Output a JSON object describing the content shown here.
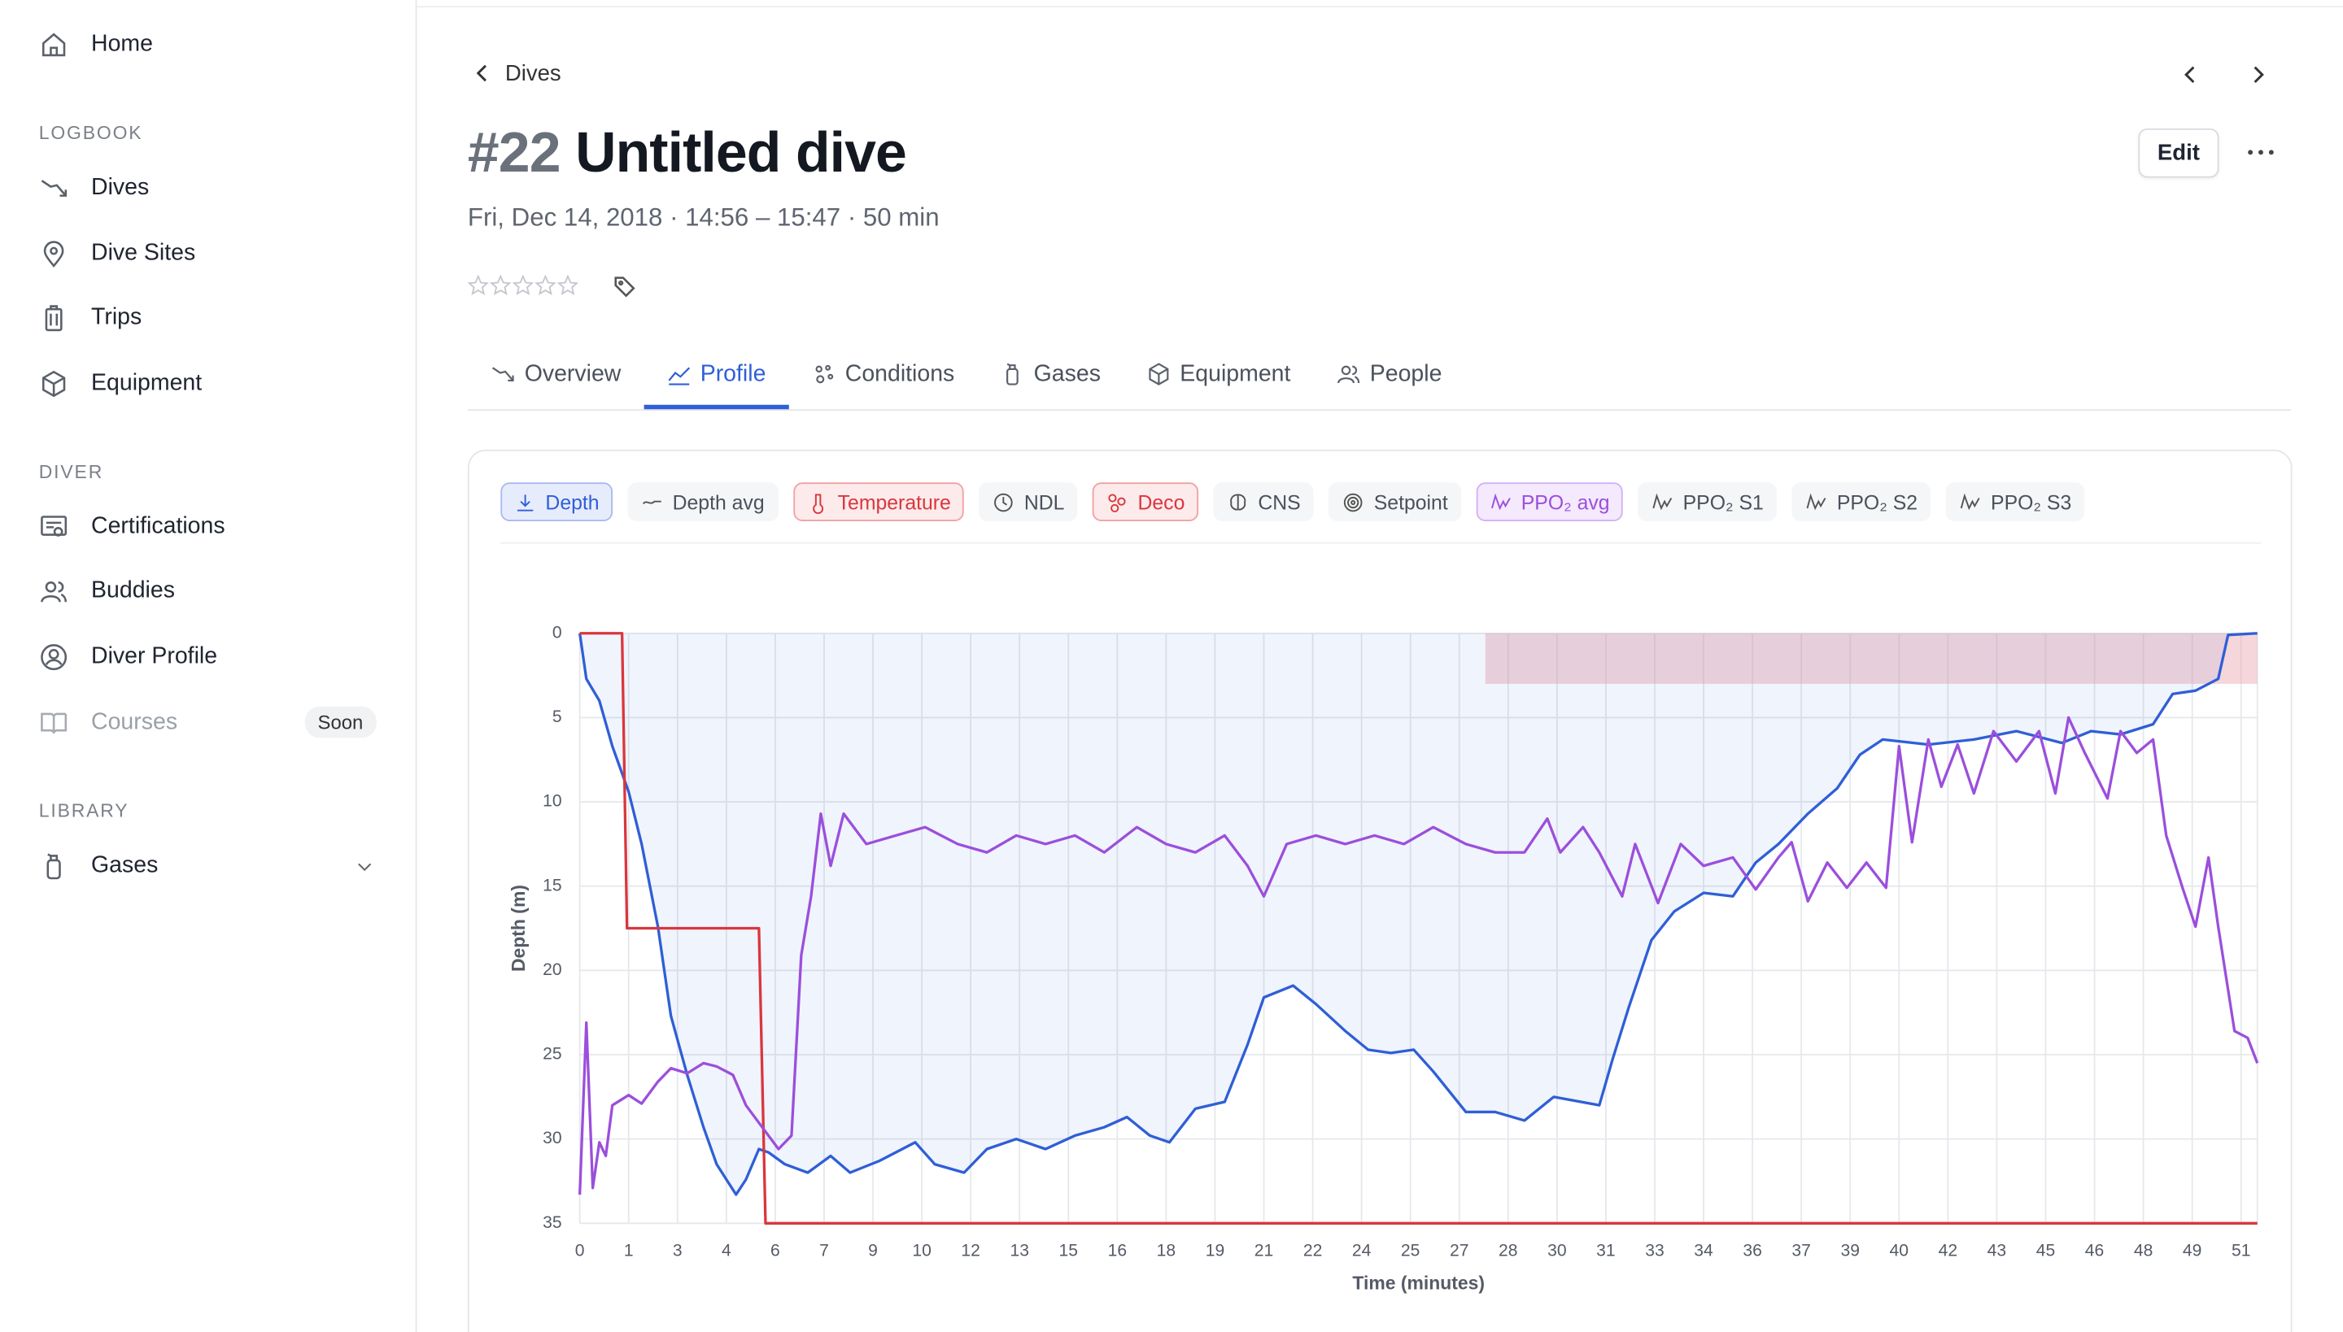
{
  "sidebar": {
    "top": [
      {
        "label": "Home"
      }
    ],
    "sections": [
      {
        "title": "LOGBOOK",
        "items": [
          {
            "label": "Dives"
          },
          {
            "label": "Dive Sites"
          },
          {
            "label": "Trips"
          },
          {
            "label": "Equipment"
          }
        ]
      },
      {
        "title": "DIVER",
        "items": [
          {
            "label": "Certifications"
          },
          {
            "label": "Buddies"
          },
          {
            "label": "Diver Profile"
          },
          {
            "label": "Courses",
            "badge": "Soon",
            "disabled": true
          }
        ]
      },
      {
        "title": "LIBRARY",
        "items": [
          {
            "label": "Gases",
            "expandable": true
          }
        ]
      }
    ]
  },
  "header": {
    "breadcrumb": "Dives",
    "number": "#22",
    "title": "Untitled dive",
    "subtitle": "Fri, Dec 14, 2018 · 14:56 – 15:47 · 50 min",
    "edit": "Edit"
  },
  "tabs": [
    {
      "label": "Overview"
    },
    {
      "label": "Profile"
    },
    {
      "label": "Conditions"
    },
    {
      "label": "Gases"
    },
    {
      "label": "Equipment"
    },
    {
      "label": "People"
    }
  ],
  "active_tab": 1,
  "toggles": [
    {
      "label": "Depth",
      "active": true,
      "color": "blue"
    },
    {
      "label": "Depth avg",
      "active": false
    },
    {
      "label": "Temperature",
      "active": true,
      "color": "red"
    },
    {
      "label": "NDL",
      "active": false
    },
    {
      "label": "Deco",
      "active": true,
      "color": "red"
    },
    {
      "label": "CNS",
      "active": false
    },
    {
      "label": "Setpoint",
      "active": false
    },
    {
      "label": "PPO₂ avg",
      "active": true,
      "color": "purple"
    },
    {
      "label": "PPO₂ S1",
      "active": false
    },
    {
      "label": "PPO₂ S2",
      "active": false
    },
    {
      "label": "PPO₂ S3",
      "active": false
    }
  ],
  "chart_data": {
    "type": "line",
    "x_label": "Time (minutes)",
    "y_label": "Depth (m)",
    "xlim": [
      0,
      51.5
    ],
    "ylim": [
      0,
      35
    ],
    "y_inverted": true,
    "grid": true,
    "xticks": [
      0,
      {
        "value": 1.5,
        "label": "1"
      },
      3,
      {
        "value": 4.5,
        "label": "4"
      },
      6,
      {
        "value": 7.5,
        "label": "7"
      },
      9,
      {
        "value": 10.5,
        "label": "10"
      },
      12,
      {
        "value": 13.5,
        "label": "13"
      },
      15,
      {
        "value": 16.5,
        "label": "16"
      },
      18,
      {
        "value": 19.5,
        "label": "19"
      },
      21,
      {
        "value": 22.5,
        "label": "22"
      },
      24,
      {
        "value": 25.5,
        "label": "25"
      },
      27,
      {
        "value": 28.5,
        "label": "28"
      },
      30,
      {
        "value": 31.5,
        "label": "31"
      },
      33,
      {
        "value": 34.5,
        "label": "34"
      },
      36,
      {
        "value": 37.5,
        "label": "37"
      },
      39,
      {
        "value": 40.5,
        "label": "40"
      },
      42,
      {
        "value": 43.5,
        "label": "43"
      },
      45,
      {
        "value": 46.5,
        "label": "46"
      },
      48,
      {
        "value": 49.5,
        "label": "49"
      },
      51
    ],
    "yticks": [
      0,
      5,
      10,
      15,
      20,
      25,
      30,
      35
    ],
    "deco_zone": {
      "x": [
        27.8,
        51.5
      ],
      "depth": [
        0,
        3
      ],
      "color": "#e8a3b0"
    },
    "series": [
      {
        "name": "Depth",
        "color": "#2f5fd6",
        "fill": true,
        "x": [
          0,
          0.2,
          0.6,
          1.0,
          1.5,
          1.9,
          2.4,
          2.8,
          3.3,
          3.8,
          4.2,
          4.8,
          5.1,
          5.5,
          5.8,
          6.3,
          7.0,
          7.7,
          8.3,
          9.2,
          10.3,
          10.9,
          11.8,
          12.5,
          13.4,
          14.3,
          15.2,
          16.1,
          16.8,
          17.5,
          18.1,
          18.9,
          19.8,
          20.5,
          21.0,
          21.9,
          22.6,
          23.5,
          24.2,
          24.9,
          25.6,
          26.2,
          27.2,
          28.1,
          29.0,
          29.9,
          31.3,
          31.7,
          32.2,
          32.9,
          33.6,
          34.5,
          35.4,
          36.1,
          36.8,
          37.7,
          38.6,
          39.3,
          40.0,
          41.4,
          42.8,
          44.1,
          45.5,
          46.4,
          47.3,
          48.3,
          48.9,
          49.6,
          50.3,
          50.6,
          51.5
        ],
        "values": [
          0,
          2.7,
          4,
          6.7,
          9.4,
          12.5,
          17.4,
          22.7,
          26.2,
          29.3,
          31.5,
          33.3,
          32.4,
          30.6,
          30.8,
          31.5,
          32,
          31,
          32,
          31.3,
          30.2,
          31.5,
          32,
          30.6,
          30,
          30.6,
          29.8,
          29.3,
          28.7,
          29.8,
          30.2,
          28.2,
          27.8,
          24.4,
          21.6,
          20.9,
          22,
          23.6,
          24.7,
          24.9,
          24.7,
          26,
          28.4,
          28.4,
          28.9,
          27.5,
          28,
          25.3,
          22.2,
          18.2,
          16.5,
          15.4,
          15.6,
          13.6,
          12.5,
          10.7,
          9.2,
          7.2,
          6.3,
          6.6,
          6.3,
          5.8,
          6.5,
          5.8,
          6,
          5.4,
          3.6,
          3.4,
          2.7,
          0.1,
          0
        ]
      },
      {
        "name": "Temperature",
        "color": "#d9363e",
        "x": [
          0,
          1.3,
          1.45,
          5.5,
          5.7,
          51.5
        ],
        "values": [
          0,
          0,
          17.5,
          17.5,
          35,
          35
        ]
      },
      {
        "name": "PPO₂ avg",
        "color": "#9b4fdc",
        "x": [
          0,
          0.2,
          0.4,
          0.6,
          0.8,
          1.0,
          1.5,
          1.9,
          2.4,
          2.8,
          3.3,
          3.8,
          4.2,
          4.7,
          5.1,
          5.6,
          6.1,
          6.5,
          6.8,
          7.1,
          7.4,
          7.7,
          8.1,
          8.8,
          9.7,
          10.6,
          11.6,
          12.5,
          13.4,
          14.3,
          15.2,
          16.1,
          17.1,
          18.0,
          18.9,
          19.8,
          20.5,
          21.0,
          21.7,
          22.6,
          23.5,
          24.4,
          25.3,
          26.2,
          27.2,
          28.1,
          29.0,
          29.7,
          30.1,
          30.8,
          31.3,
          32.0,
          32.4,
          33.1,
          33.8,
          34.5,
          35.4,
          36.1,
          36.8,
          37.2,
          37.7,
          38.3,
          38.9,
          39.5,
          40.1,
          40.5,
          40.9,
          41.4,
          41.8,
          42.3,
          42.8,
          43.4,
          44.1,
          44.8,
          45.3,
          45.7,
          46.2,
          46.9,
          47.3,
          47.8,
          48.3,
          48.7,
          49.2,
          49.6,
          50.0,
          50.3,
          50.8,
          51.2,
          51.5
        ],
        "values": [
          33.3,
          23.1,
          32.9,
          30.2,
          31,
          28,
          27.4,
          27.9,
          26.6,
          25.8,
          26.1,
          25.5,
          25.7,
          26.2,
          28,
          29.3,
          30.6,
          29.8,
          19.1,
          15.6,
          10.7,
          13.8,
          10.7,
          12.5,
          12,
          11.5,
          12.5,
          13,
          12,
          12.5,
          12,
          13,
          11.5,
          12.5,
          13,
          12,
          13.8,
          15.6,
          12.5,
          12,
          12.5,
          12,
          12.5,
          11.5,
          12.5,
          13,
          13,
          11,
          13,
          11.5,
          13,
          15.6,
          12.5,
          16,
          12.5,
          13.8,
          13.3,
          15.2,
          13.3,
          12.4,
          15.9,
          13.6,
          15.1,
          13.6,
          15.1,
          6.7,
          12.4,
          6.3,
          9.1,
          6.6,
          9.5,
          5.8,
          7.6,
          5.8,
          9.5,
          5,
          7.1,
          9.8,
          5.8,
          7.1,
          6.3,
          12,
          15.1,
          17.4,
          13.3,
          17.4,
          23.6,
          24,
          25.5
        ]
      }
    ]
  }
}
